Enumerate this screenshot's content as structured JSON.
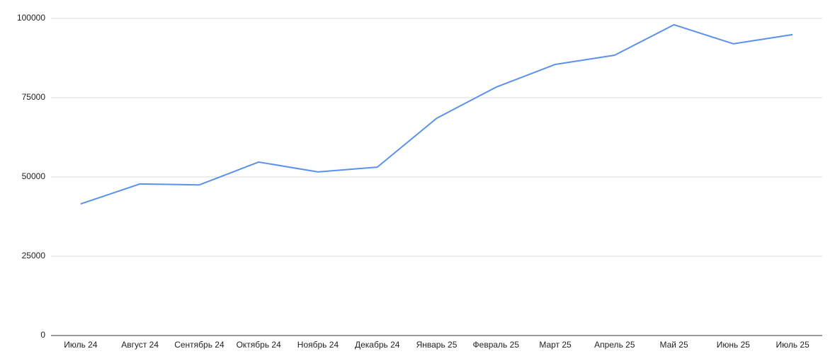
{
  "chart_data": {
    "type": "line",
    "categories": [
      "Июль 24",
      "Август 24",
      "Сентябрь 24",
      "Октябрь 24",
      "Ноябрь 24",
      "Декабрь 24",
      "Январь 25",
      "Февраль 25",
      "Март 25",
      "Апрель 25",
      "Май 25",
      "Июнь 25",
      "Июль 25"
    ],
    "values": [
      41500,
      47800,
      47500,
      54700,
      51600,
      53100,
      68500,
      78300,
      85500,
      88400,
      98000,
      92000,
      94900
    ],
    "color": "#5b91ee",
    "ylim": [
      0,
      100000
    ],
    "yticks": [
      0,
      25000,
      50000,
      75000,
      100000
    ],
    "grid": true
  }
}
